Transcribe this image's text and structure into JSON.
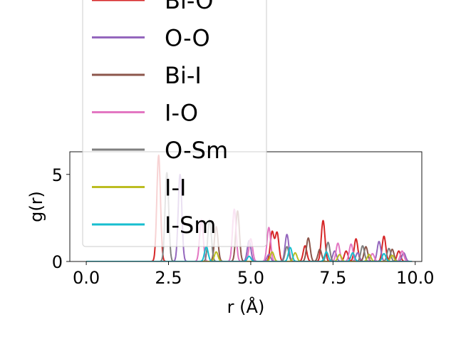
{
  "chart_data": {
    "type": "line",
    "title": "",
    "xlabel": "r (Å)",
    "ylabel": "g(r)",
    "xlim": [
      -0.5,
      10.2
    ],
    "ylim": [
      0,
      6.3
    ],
    "xticks": [
      0.0,
      2.5,
      5.0,
      7.5,
      10.0
    ],
    "xtick_labels": [
      "0.0",
      "2.5",
      "5.0",
      "7.5",
      "10.0"
    ],
    "yticks": [
      0,
      5
    ],
    "ytick_labels": [
      "0",
      "5"
    ],
    "grid": false,
    "legend_placement": "upper-left, overflowing above plot",
    "series": [
      {
        "name": "Bi-O",
        "color": "#d62728",
        "peaks": [
          [
            2.2,
            6.1
          ],
          [
            5.65,
            1.7
          ],
          [
            5.8,
            1.65
          ],
          [
            6.65,
            0.9
          ],
          [
            7.2,
            2.35
          ],
          [
            7.9,
            0.6
          ],
          [
            8.2,
            1.3
          ],
          [
            9.05,
            1.45
          ],
          [
            9.5,
            0.6
          ]
        ]
      },
      {
        "name": "O-O",
        "color": "#9467bd",
        "peaks": [
          [
            2.85,
            5.0
          ],
          [
            4.95,
            1.2
          ],
          [
            5.55,
            0.4
          ],
          [
            6.1,
            1.55
          ],
          [
            7.55,
            0.6
          ],
          [
            8.25,
            0.5
          ],
          [
            8.9,
            1.15
          ],
          [
            9.65,
            0.5
          ]
        ]
      },
      {
        "name": "Bi-I",
        "color": "#8c564b",
        "peaks": [
          [
            3.95,
            2.0
          ],
          [
            4.6,
            2.9
          ],
          [
            6.75,
            1.35
          ],
          [
            7.1,
            0.7
          ],
          [
            8.5,
            0.85
          ],
          [
            9.3,
            0.7
          ]
        ]
      },
      {
        "name": "I-O",
        "color": "#e377c2",
        "peaks": [
          [
            3.5,
            2.4
          ],
          [
            4.5,
            3.0
          ],
          [
            5.0,
            1.3
          ],
          [
            5.55,
            1.95
          ],
          [
            7.65,
            1.05
          ],
          [
            8.05,
            1.0
          ],
          [
            8.7,
            0.45
          ],
          [
            9.6,
            0.6
          ]
        ]
      },
      {
        "name": "O-Sm",
        "color": "#7f7f7f",
        "peaks": [
          [
            2.45,
            5.1
          ],
          [
            3.75,
            2.4
          ],
          [
            6.1,
            0.85
          ],
          [
            7.35,
            1.1
          ],
          [
            8.4,
            0.9
          ],
          [
            9.2,
            0.75
          ]
        ]
      },
      {
        "name": "I-I",
        "color": "#bcbd22",
        "peaks": [
          [
            3.95,
            0.55
          ],
          [
            5.65,
            0.55
          ],
          [
            6.35,
            0.5
          ],
          [
            7.7,
            0.4
          ],
          [
            8.6,
            0.4
          ],
          [
            9.3,
            0.35
          ]
        ]
      },
      {
        "name": "I-Sm",
        "color": "#17becf",
        "peaks": [
          [
            3.65,
            0.85
          ],
          [
            4.95,
            0.3
          ],
          [
            6.2,
            0.8
          ],
          [
            7.3,
            0.55
          ],
          [
            8.1,
            0.5
          ],
          [
            9.05,
            0.45
          ]
        ]
      }
    ]
  }
}
